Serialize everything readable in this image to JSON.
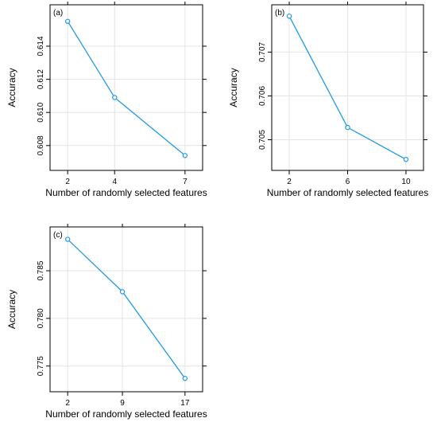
{
  "chart_data": [
    {
      "type": "line",
      "panel_label": "(a)",
      "xlabel": "Number of randomly selected features",
      "ylabel": "Accuracy",
      "x": [
        2,
        4,
        7
      ],
      "y": [
        0.6155,
        0.6109,
        0.6074
      ],
      "xlim": [
        1.25,
        7.75
      ],
      "ylim": [
        0.6065,
        0.6165
      ],
      "xticks": [
        2,
        4,
        7
      ],
      "yticks": [
        0.608,
        0.61,
        0.612,
        0.614
      ],
      "ytick_labels": [
        "0.608",
        "0.610",
        "0.612",
        "0.614"
      ],
      "grid": true,
      "color": "#1f9ae6"
    },
    {
      "type": "line",
      "panel_label": "(b)",
      "xlabel": "Number of randomly selected features",
      "ylabel": "Accuracy",
      "x": [
        2,
        6,
        10
      ],
      "y": [
        0.70782,
        0.70528,
        0.70455
      ],
      "xlim": [
        0.8,
        11.2
      ],
      "ylim": [
        0.7043,
        0.70808
      ],
      "xticks": [
        2,
        6,
        10
      ],
      "yticks": [
        0.705,
        0.706,
        0.707
      ],
      "ytick_labels": [
        "0.705",
        "0.706",
        "0.707"
      ],
      "grid": true,
      "color": "#1f9ae6"
    },
    {
      "type": "line",
      "panel_label": "(c)",
      "xlabel": "Number of randomly selected features",
      "ylabel": "Accuracy",
      "x": [
        2,
        9,
        17
      ],
      "y": [
        0.7883,
        0.7828,
        0.7737
      ],
      "xlim": [
        -0.25,
        19.25
      ],
      "ylim": [
        0.7723,
        0.7896
      ],
      "xticks": [
        2,
        9,
        17
      ],
      "yticks": [
        0.775,
        0.78,
        0.785
      ],
      "ytick_labels": [
        "0.775",
        "0.780",
        "0.785"
      ],
      "grid": true,
      "color": "#1f9ae6"
    }
  ]
}
